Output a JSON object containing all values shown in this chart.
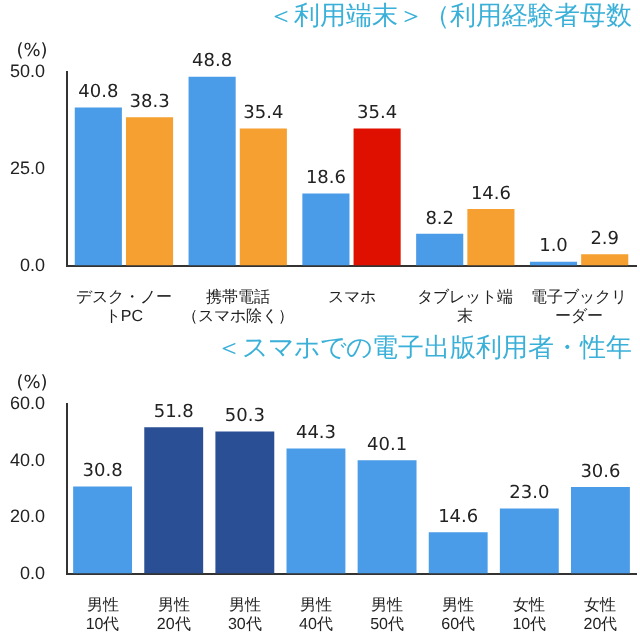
{
  "chart_data": [
    {
      "type": "bar",
      "title": "＜利用端末＞（利用経験者母数",
      "ylabel": "(%)",
      "categories": [
        "デスク・ノートPC",
        "携帯電話（スマホ除く）",
        "スマホ",
        "タブレット端末",
        "電子ブックリーダー"
      ],
      "series": [
        {
          "color": "#4a9be8",
          "values": [
            40.8,
            48.8,
            18.6,
            8.2,
            1.0
          ],
          "value_labels": [
            "40.8",
            "48.8",
            "18.6",
            "8.2",
            "1.0"
          ]
        },
        {
          "color": "#f5a030",
          "colors": [
            "#f5a030",
            "#f5a030",
            "#e01000",
            "#f5a030",
            "#f5a030"
          ],
          "values": [
            38.3,
            35.4,
            35.4,
            14.6,
            2.9
          ],
          "value_labels": [
            "38.3",
            "35.4",
            "35.4",
            "14.6",
            "2.9"
          ]
        }
      ],
      "ylim": [
        0,
        50
      ],
      "yticks": [
        {
          "value": 0,
          "label": "0.0"
        },
        {
          "value": 25,
          "label": "25.0"
        },
        {
          "value": 50,
          "label": "50.0"
        }
      ],
      "grid": false,
      "legend": false
    },
    {
      "type": "bar",
      "title": "＜スマホでの電子出版利用者・性年",
      "ylabel": "(%)",
      "categories": [
        "男性10代",
        "男性20代",
        "男性30代",
        "男性40代",
        "男性50代",
        "男性60代",
        "女性10代",
        "女性20代"
      ],
      "series": [
        {
          "color": "#4a9be8",
          "colors": [
            "#4a9be8",
            "#2a4f94",
            "#2a4f94",
            "#4a9be8",
            "#4a9be8",
            "#4a9be8",
            "#4a9be8",
            "#4a9be8"
          ],
          "values": [
            30.8,
            51.8,
            50.3,
            44.3,
            40.1,
            14.6,
            23.0,
            30.6
          ],
          "value_labels": [
            "30.8",
            "51.8",
            "50.3",
            "44.3",
            "40.1",
            "14.6",
            "23.0",
            "30.6"
          ]
        }
      ],
      "ylim": [
        0,
        60
      ],
      "yticks": [
        {
          "value": 0,
          "label": "0.0"
        },
        {
          "value": 20,
          "label": "20.0"
        },
        {
          "value": 40,
          "label": "40.0"
        },
        {
          "value": 60,
          "label": "60.0"
        }
      ],
      "grid": false,
      "legend": false
    }
  ]
}
